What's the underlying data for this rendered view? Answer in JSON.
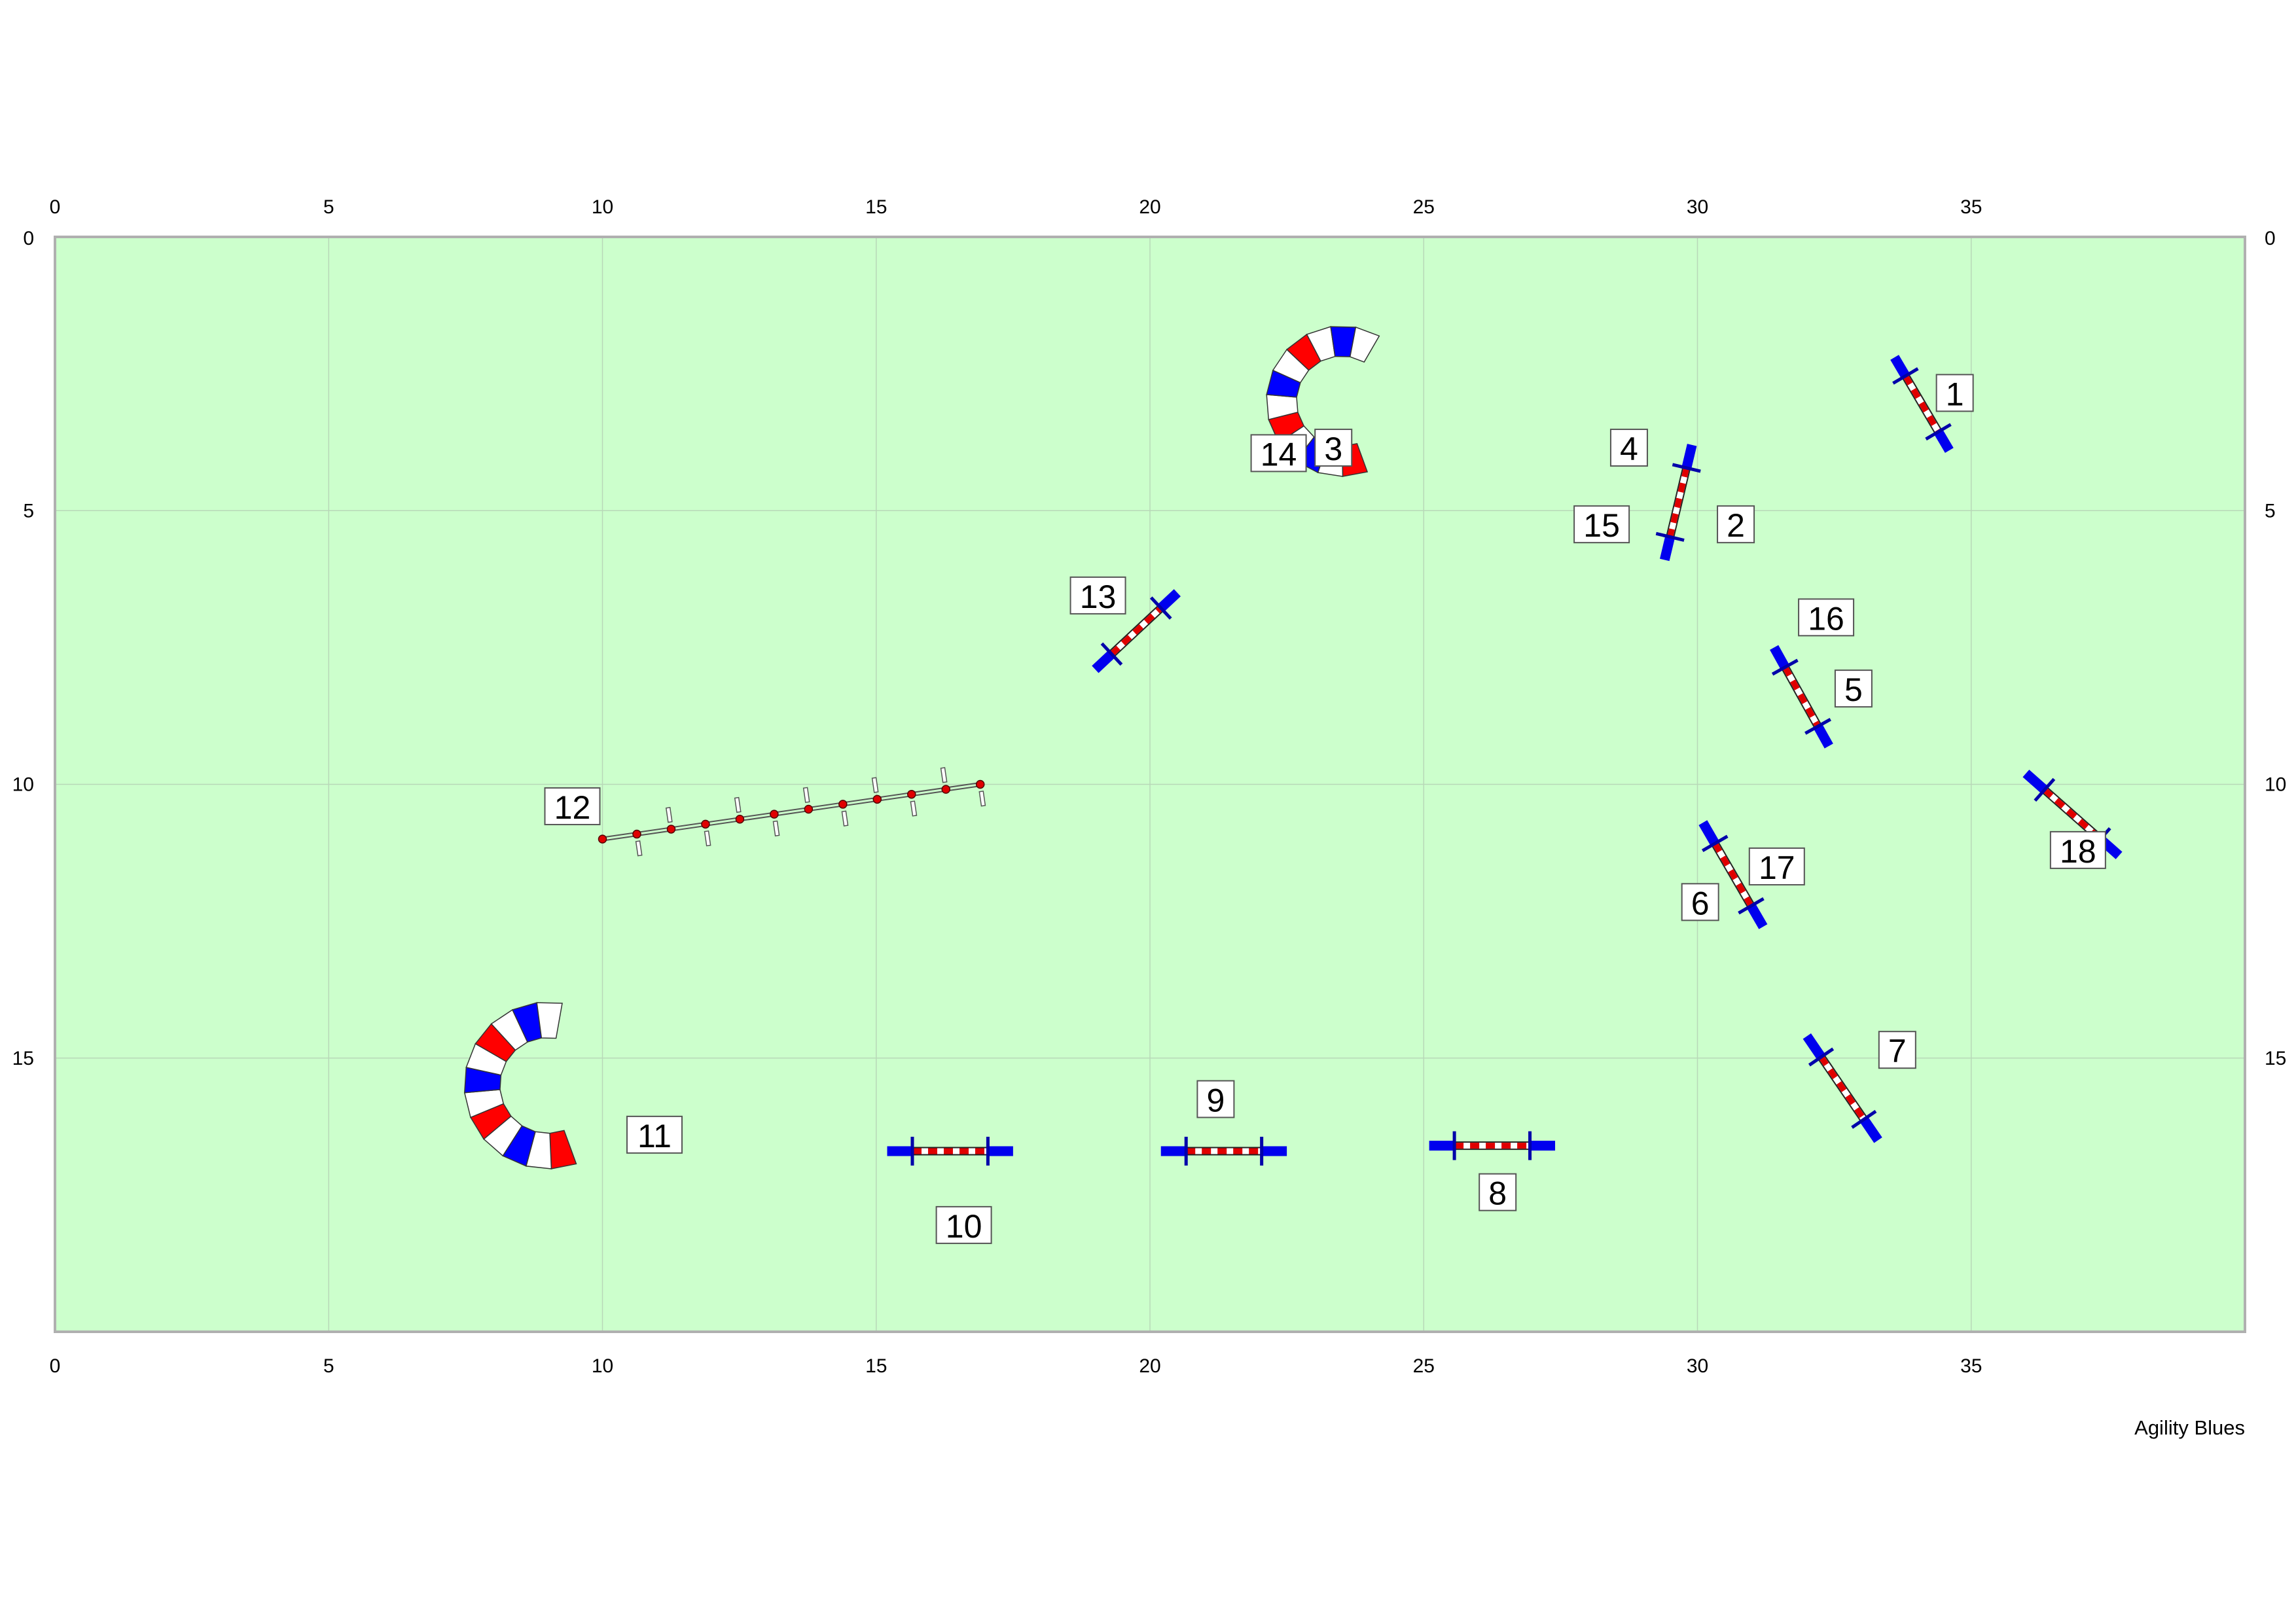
{
  "course": {
    "width_m": 40,
    "height_m": 20,
    "grid_step_m": 5,
    "x_ticks": [
      "0",
      "5",
      "10",
      "15",
      "20",
      "25",
      "30",
      "35"
    ],
    "y_ticks": [
      "0",
      "5",
      "10",
      "15"
    ],
    "designer": "Agility Blues"
  },
  "colors": {
    "field": "#ccffcc",
    "grid": "#b8d8b8",
    "border": "#b0b0b0",
    "wing": "#0000ee",
    "pole_red": "#e00000",
    "tunnel_red": "#ff0000",
    "tunnel_blue": "#0000ff",
    "tunnel_white": "#ffffff"
  },
  "jumps": [
    {
      "id": "jump-1",
      "x1": 33.6,
      "y1": 2.2,
      "x2": 34.6,
      "y2": 3.9
    },
    {
      "id": "jump-2",
      "x1": 29.9,
      "y1": 3.8,
      "x2": 29.4,
      "y2": 5.9
    },
    {
      "id": "jump-5",
      "x1": 31.4,
      "y1": 7.5,
      "x2": 32.4,
      "y2": 9.3
    },
    {
      "id": "jump-6",
      "x1": 30.1,
      "y1": 10.7,
      "x2": 31.2,
      "y2": 12.6
    },
    {
      "id": "jump-7",
      "x1": 32.0,
      "y1": 14.6,
      "x2": 33.3,
      "y2": 16.5
    },
    {
      "id": "jump-8",
      "x1": 25.1,
      "y1": 16.6,
      "x2": 27.4,
      "y2": 16.6
    },
    {
      "id": "jump-9",
      "x1": 20.2,
      "y1": 16.7,
      "x2": 22.5,
      "y2": 16.7
    },
    {
      "id": "jump-10",
      "x1": 15.2,
      "y1": 16.7,
      "x2": 17.5,
      "y2": 16.7
    },
    {
      "id": "jump-13",
      "x1": 19.0,
      "y1": 7.9,
      "x2": 20.5,
      "y2": 6.5
    },
    {
      "id": "jump-18",
      "x1": 36.0,
      "y1": 9.8,
      "x2": 37.7,
      "y2": 11.3
    }
  ],
  "weave_poles": {
    "x1": 10.0,
    "y1": 11.0,
    "x2": 16.9,
    "y2": 10.0,
    "count": 12
  },
  "tunnels": [
    {
      "id": "tunnel-3-14",
      "cx": 23.5,
      "cy": 3.0,
      "r": 1.1,
      "start_deg": 290,
      "end_deg": 60,
      "thickness": 0.55
    },
    {
      "id": "tunnel-11",
      "cx": 9.0,
      "cy": 15.5,
      "r": 1.2,
      "start_deg": 290,
      "end_deg": 80,
      "thickness": 0.65
    }
  ],
  "labels": [
    {
      "text": "1",
      "x": 34.7,
      "y": 2.85
    },
    {
      "text": "2",
      "x": 30.7,
      "y": 5.25
    },
    {
      "text": "3",
      "x": 23.35,
      "y": 3.85
    },
    {
      "text": "4",
      "x": 28.75,
      "y": 3.85
    },
    {
      "text": "5",
      "x": 32.85,
      "y": 8.25
    },
    {
      "text": "6",
      "x": 30.05,
      "y": 12.15
    },
    {
      "text": "7",
      "x": 33.65,
      "y": 14.85
    },
    {
      "text": "8",
      "x": 26.35,
      "y": 17.45
    },
    {
      "text": "9",
      "x": 21.2,
      "y": 15.75
    },
    {
      "text": "10",
      "x": 16.6,
      "y": 18.05
    },
    {
      "text": "11",
      "x": 10.95,
      "y": 16.4
    },
    {
      "text": "12",
      "x": 9.45,
      "y": 10.4
    },
    {
      "text": "13",
      "x": 19.05,
      "y": 6.55
    },
    {
      "text": "14",
      "x": 22.35,
      "y": 3.95
    },
    {
      "text": "15",
      "x": 28.25,
      "y": 5.25
    },
    {
      "text": "16",
      "x": 32.35,
      "y": 6.95
    },
    {
      "text": "17",
      "x": 31.45,
      "y": 11.5
    },
    {
      "text": "18",
      "x": 36.95,
      "y": 11.2
    }
  ]
}
